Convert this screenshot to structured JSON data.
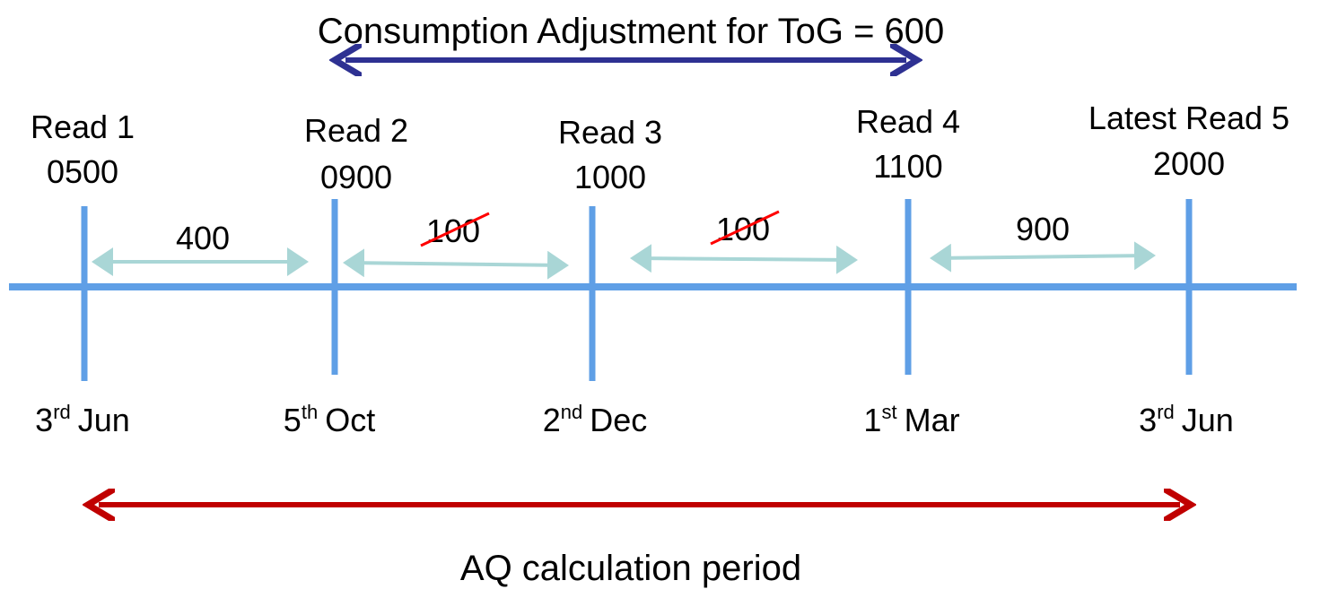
{
  "title": "Consumption Adjustment for ToG = 600",
  "reads": [
    {
      "label": "Read 1",
      "value": "0500",
      "date": {
        "day": "3",
        "suffix": "rd",
        "month": "Jun"
      }
    },
    {
      "label": "Read 2",
      "value": "0900",
      "date": {
        "day": "5",
        "suffix": "th",
        "month": "Oct"
      }
    },
    {
      "label": "Read 3",
      "value": "1000",
      "date": {
        "day": "2",
        "suffix": "nd",
        "month": "Dec"
      }
    },
    {
      "label": "Read 4",
      "value": "1100",
      "date": {
        "day": "1",
        "suffix": "st",
        "month": "Mar"
      }
    },
    {
      "label": "Latest Read 5",
      "value": "2000",
      "date": {
        "day": "3",
        "suffix": "rd",
        "month": "Jun"
      }
    }
  ],
  "intervals": [
    {
      "text": "400",
      "struck": false
    },
    {
      "text": "100",
      "struck": true
    },
    {
      "text": "100",
      "struck": true
    },
    {
      "text": "900",
      "struck": false
    }
  ],
  "period_label": "AQ calculation period"
}
